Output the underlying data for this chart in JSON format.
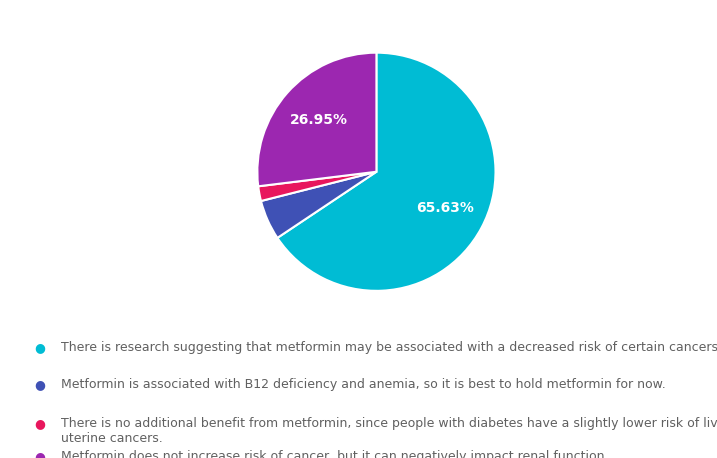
{
  "slices": [
    65.63,
    5.42,
    2.0,
    26.95
  ],
  "colors": [
    "#00BCD4",
    "#3F51B5",
    "#E8175D",
    "#9C27B0"
  ],
  "legend_texts": [
    "There is research suggesting that metformin may be associated with a decreased risk of certain cancers.",
    "Metformin is associated with B12 deficiency and anemia, so it is best to hold metformin for now.",
    "There is no additional benefit from metformin, since people with diabetes have a slightly lower risk of liver and\nuterine cancers.",
    "Metformin does not increase risk of cancer, but it can negatively impact renal function."
  ],
  "background_color": "#FFFFFF",
  "text_color": "#606060",
  "autopct_fontsize": 10,
  "legend_fontsize": 9,
  "startangle": 90,
  "pct_labels": [
    "65.63%",
    "",
    "",
    "26.95%"
  ]
}
